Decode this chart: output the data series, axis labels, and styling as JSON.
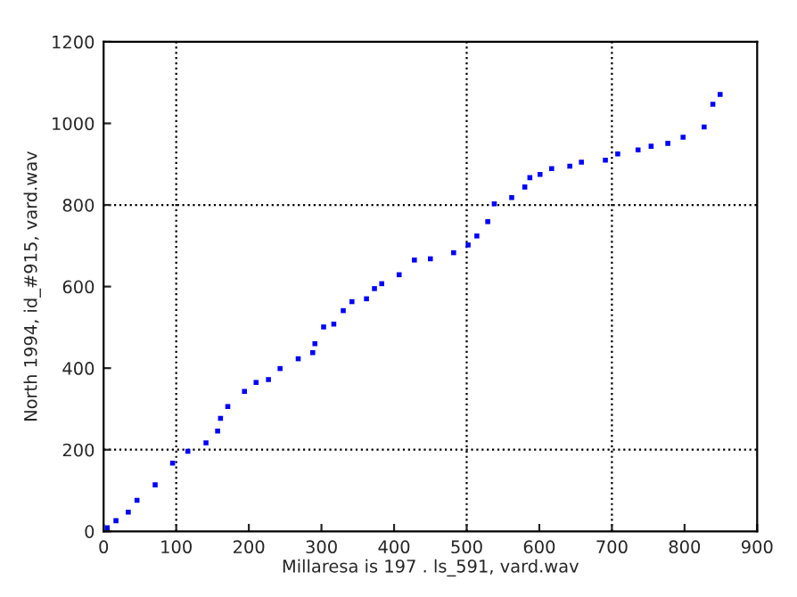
{
  "chart_data": {
    "type": "scatter",
    "xlabel": "Millaresa is 197 . ls_591, vard.wav",
    "ylabel": "North 1994, id_#915, vard.wav",
    "x": [
      5,
      17,
      34,
      46,
      71,
      95,
      116,
      141,
      157,
      161,
      171,
      194,
      210,
      227,
      243,
      268,
      288,
      291,
      303,
      317,
      330,
      342,
      362,
      373,
      383,
      407,
      428,
      450,
      482,
      502,
      514,
      529,
      538,
      562,
      580,
      587,
      601,
      617,
      642,
      658,
      691,
      708,
      736,
      754,
      777,
      798,
      827,
      839,
      849
    ],
    "series": [
      {
        "color": "#0000ff",
        "values": [
          9,
          26,
          47,
          76,
          114,
          167,
          196,
          217,
          246,
          277,
          306,
          343,
          365,
          372,
          399,
          423,
          438,
          460,
          501,
          508,
          541,
          563,
          570,
          595,
          607,
          629,
          665,
          668,
          683,
          702,
          724,
          759,
          803,
          818,
          844,
          867,
          875,
          889,
          895,
          905,
          910,
          925,
          935,
          944,
          951,
          966,
          991,
          1047,
          1071
        ]
      }
    ],
    "xlim": [
      0,
      900
    ],
    "xticks": [
      0,
      100,
      200,
      300,
      400,
      500,
      600,
      700,
      800,
      900
    ],
    "ylim": [
      0,
      1200
    ],
    "yticks": [
      0,
      200,
      400,
      600,
      800,
      1000,
      1200
    ],
    "ref_lines": [
      {
        "axis": "x",
        "value": 100,
        "color": "#000000",
        "line_style": "dotted"
      },
      {
        "axis": "x",
        "value": 500,
        "color": "#000000",
        "line_style": "dotted"
      },
      {
        "axis": "x",
        "value": 700,
        "color": "#000000",
        "line_style": "dotted"
      },
      {
        "axis": "y",
        "value": 200,
        "color": "#000000",
        "line_style": "dotted"
      },
      {
        "axis": "y",
        "value": 800,
        "color": "#000000",
        "line_style": "dotted"
      }
    ],
    "marker": "square",
    "grid": false,
    "legend": false
  }
}
